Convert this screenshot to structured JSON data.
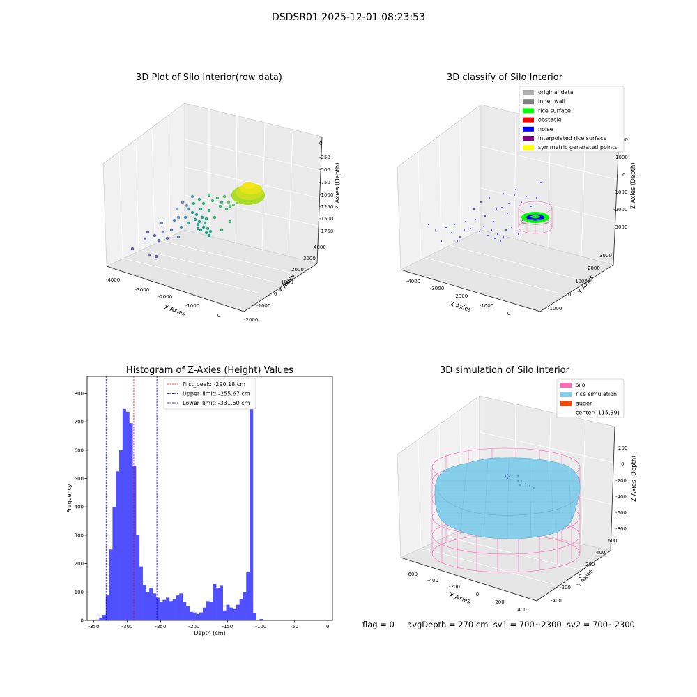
{
  "suptitle": "DSDSR01 2025-12-01 08:23:53",
  "plot1": {
    "title": "3D Plot of Silo Interior(row data)",
    "xlabel": "X Axies",
    "ylabel": "Y Axies",
    "zlabel": "Z Axies (Depth)",
    "xticks": [
      "-4000",
      "-3000",
      "-2000",
      "-1000",
      "0"
    ],
    "yticks": [
      "-2000",
      "-1000",
      "0",
      "1000",
      "2000",
      "3000",
      "4000"
    ],
    "zticks": [
      "0",
      "-250",
      "-500",
      "-750",
      "-1000",
      "-1250",
      "-1500",
      "-1750"
    ]
  },
  "plot2": {
    "title": "3D classify of Silo Interior",
    "xlabel": "X Axies",
    "ylabel": "Y Axies",
    "zlabel": "Z Axies (Depth)",
    "xticks": [
      "-4000",
      "-3000",
      "-2000",
      "-1000",
      "0"
    ],
    "yticks": [
      "-1000",
      "0",
      "1000",
      "2000",
      "3000"
    ],
    "zticks": [
      "2000",
      "1000",
      "0",
      "-1000",
      "-2000",
      "-3000"
    ],
    "legend": [
      {
        "label": "original data",
        "color": "#b0b0b0"
      },
      {
        "label": "inner wall",
        "color": "#808080"
      },
      {
        "label": "rice surface",
        "color": "#00ff00"
      },
      {
        "label": "obstacle",
        "color": "#ff0000"
      },
      {
        "label": "noise",
        "color": "#0000ff"
      },
      {
        "label": "interpolated rice surface",
        "color": "#800080"
      },
      {
        "label": "symmetric generated points",
        "color": "#ffff00"
      }
    ]
  },
  "plot3": {
    "title": "Histogram of Z-Axies (Height) Values",
    "legend": [
      {
        "label": "first_peak: -290.18 cm",
        "color": "#ff0000"
      },
      {
        "label": "Upper_limit: -255.67 cm",
        "color": "#0000cc"
      },
      {
        "label": "Lower_limit: -331.60 cm",
        "color": "#0000cc"
      }
    ]
  },
  "plot4": {
    "title": "3D simulation of Silo Interior",
    "xlabel": "X Axies",
    "ylabel": "Y Axies",
    "zlabel": "Z Axies (Depth)",
    "xticks": [
      "-600",
      "-400",
      "-200",
      "0",
      "200",
      "400"
    ],
    "yticks": [
      "-400",
      "-200",
      "0",
      "200",
      "400",
      "600"
    ],
    "zticks": [
      "200",
      "0",
      "-200",
      "-400",
      "-600",
      "-800"
    ],
    "legend": [
      {
        "label": "silo",
        "color": "#ff69b4"
      },
      {
        "label": "rice simulation",
        "color": "#87ceeb"
      },
      {
        "label": "auger",
        "color": "#ff4500"
      },
      {
        "label": "center(-115,39)",
        "color": ""
      }
    ]
  },
  "status": {
    "flag": "flag = 0",
    "avg_depth": "avgDepth = 270 cm",
    "sv1": "sv1 = 700~2300",
    "sv2": "sv2 = 700~2300"
  },
  "chart_data": {
    "type": "bar",
    "title": "Histogram of Z-Axies (Height) Values",
    "xlabel": "Depth (cm)",
    "ylabel": "Frequency",
    "xlim": [
      -360,
      7
    ],
    "ylim": [
      0,
      860
    ],
    "xticks": [
      -350,
      -300,
      -250,
      -200,
      -150,
      -100,
      -50,
      0
    ],
    "yticks": [
      0,
      100,
      200,
      300,
      400,
      500,
      600,
      700,
      800
    ],
    "bin_start": -347,
    "bin_width": 5,
    "values": [
      3,
      10,
      20,
      90,
      250,
      400,
      525,
      600,
      745,
      735,
      695,
      545,
      300,
      190,
      125,
      100,
      115,
      95,
      80,
      65,
      72,
      80,
      68,
      75,
      88,
      95,
      65,
      50,
      30,
      28,
      22,
      28,
      45,
      68,
      65,
      128,
      115,
      122,
      35,
      55,
      45,
      40,
      55,
      75,
      100,
      170,
      815,
      25,
      0,
      5
    ],
    "vlines": [
      {
        "x": -290.18,
        "color": "#ff0000"
      },
      {
        "x": -255.67,
        "color": "#0000cc"
      },
      {
        "x": -331.6,
        "color": "#0000cc"
      }
    ],
    "bar_color": "#5050ff",
    "grid": false,
    "legend_position": "top-center"
  }
}
